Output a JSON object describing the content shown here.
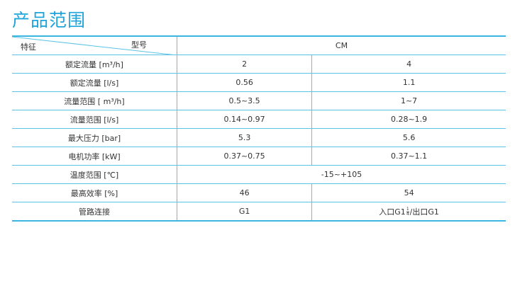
{
  "title": "产品范围",
  "header": {
    "feature": "特征",
    "model": "型号",
    "model_name": "CM"
  },
  "rows": [
    {
      "label": "额定流量 [m³/h]",
      "v1": "2",
      "v2": "4"
    },
    {
      "label": "额定流量 [l/s]",
      "v1": "0.56",
      "v2": "1.1"
    },
    {
      "label": "流量范围 [ m³/h]",
      "v1": "0.5~3.5",
      "v2": "1~7"
    },
    {
      "label": "流量范围 [l/s]",
      "v1": "0.14~0.97",
      "v2": "0.28~1.9"
    },
    {
      "label": "最大压力 [bar]",
      "v1": "5.3",
      "v2": "5.6"
    },
    {
      "label": "电机功率 [kW]",
      "v1": "0.37~0.75",
      "v2": "0.37~1.1"
    },
    {
      "label": "温度范围 [℃]",
      "span": "-15~+105"
    },
    {
      "label": "最高效率 [%]",
      "v1": "46",
      "v2": "54"
    },
    {
      "label": "管路连接",
      "v1": "G1",
      "v2_pre": "入口G1",
      "v2_num": "1",
      "v2_den": "4",
      "v2_post": "/出口G1"
    }
  ]
}
